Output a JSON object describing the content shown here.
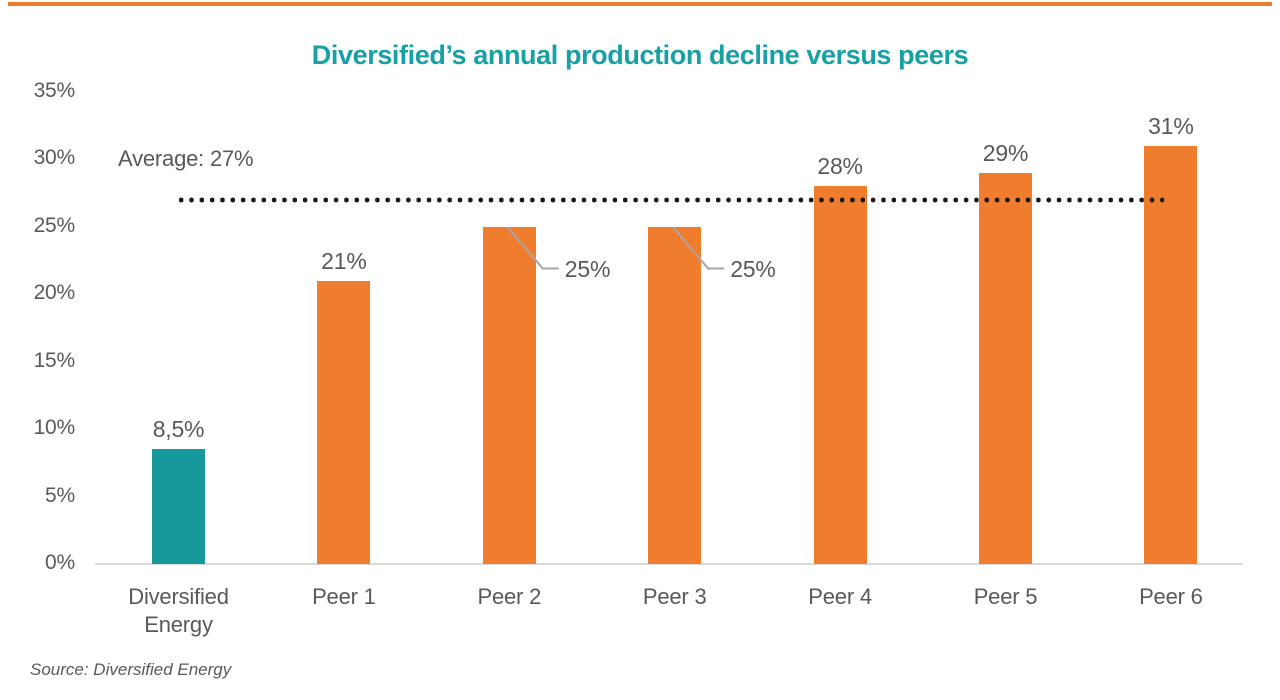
{
  "page": {
    "title": "Diversified’s annual production decline versus peers",
    "source": "Source: Diversified Energy"
  },
  "colors": {
    "accent_rule": "#EF7D2D",
    "title": "#18A0A5",
    "bar_orange": "#EF7D2D",
    "bar_teal": "#17999B",
    "label_gray": "#595959",
    "axis_line": "#D9D9D9",
    "dotted_line": "#1A1A1A",
    "callout_line": "#A6A6A6"
  },
  "chart_data": {
    "type": "bar",
    "title": "Diversified’s annual production decline versus peers",
    "categories": [
      "Diversified Energy",
      "Peer 1",
      "Peer 2",
      "Peer 3",
      "Peer 4",
      "Peer 5",
      "Peer 6"
    ],
    "values": [
      8.5,
      21,
      25,
      25,
      28,
      29,
      31
    ],
    "value_labels": [
      "8,5%",
      "21%",
      "25%",
      "25%",
      "28%",
      "29%",
      "31%"
    ],
    "bar_colors": [
      "#17999B",
      "#EF7D2D",
      "#EF7D2D",
      "#EF7D2D",
      "#EF7D2D",
      "#EF7D2D",
      "#EF7D2D"
    ],
    "callout_indices": [
      2,
      3
    ],
    "xlabel": "",
    "ylabel": "",
    "ylim": [
      0,
      35
    ],
    "yticks": [
      "0%",
      "5%",
      "10%",
      "15%",
      "20%",
      "25%",
      "30%",
      "35%"
    ],
    "grid": false,
    "legend": null,
    "average_line": {
      "value": 27,
      "label": "Average: 27%",
      "style": "dotted"
    },
    "source": "Source: Diversified Energy"
  }
}
